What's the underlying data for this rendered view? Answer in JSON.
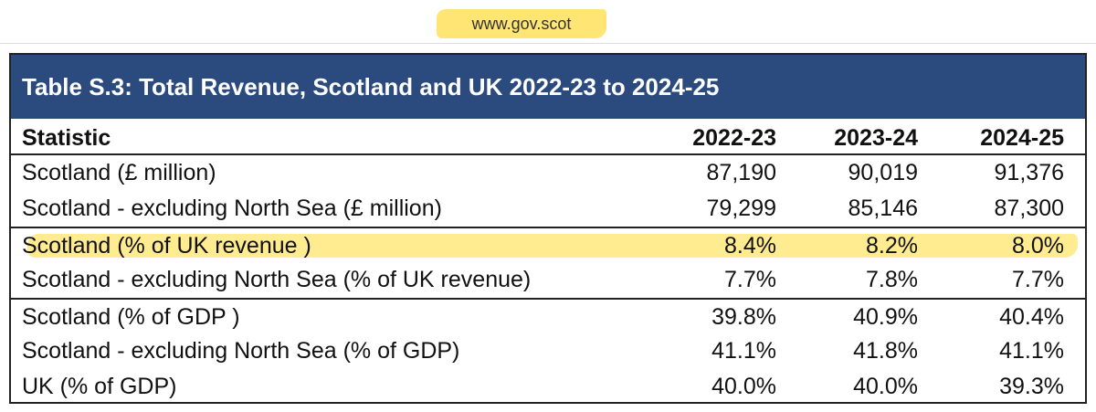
{
  "header": {
    "url": "www.gov.scot"
  },
  "table": {
    "title": "Table S.3: Total Revenue, Scotland and UK 2022-23 to 2024-25",
    "columns": [
      "Statistic",
      "2022-23",
      "2023-24",
      "2024-25"
    ],
    "groups": [
      [
        [
          "Scotland (£ million)",
          "87,190",
          "90,019",
          "91,376"
        ],
        [
          "Scotland - excluding North Sea (£ million)",
          "79,299",
          "85,146",
          "87,300"
        ]
      ],
      [
        [
          "Scotland (% of UK revenue )",
          "8.4%",
          "8.2%",
          "8.0%"
        ],
        [
          "Scotland - excluding North Sea (% of UK revenue)",
          "7.7%",
          "7.8%",
          "7.7%"
        ]
      ],
      [
        [
          "Scotland (% of GDP )",
          "39.8%",
          "40.9%",
          "40.4%"
        ],
        [
          "Scotland - excluding North Sea (% of GDP)",
          "41.1%",
          "41.8%",
          "41.1%"
        ],
        [
          "UK (% of GDP)",
          "40.0%",
          "40.0%",
          "39.3%"
        ]
      ]
    ]
  }
}
